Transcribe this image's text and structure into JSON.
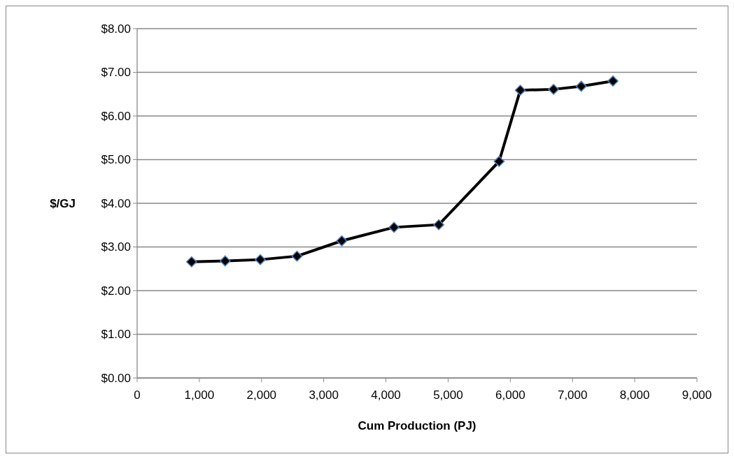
{
  "chart_data": {
    "type": "line",
    "xlabel": "Cum Production (PJ)",
    "ylabel": "$/GJ",
    "x": [
      875,
      1415,
      1980,
      2570,
      3290,
      4130,
      4850,
      5820,
      6160,
      6695,
      7140,
      7650
    ],
    "series": [
      {
        "color": "#000000",
        "values": [
          2.66,
          2.68,
          2.71,
          2.79,
          3.14,
          3.45,
          3.51,
          4.96,
          6.59,
          6.61,
          6.68,
          6.8
        ]
      }
    ],
    "xlim": [
      0,
      9000
    ],
    "xticks": [
      {
        "value": 0,
        "label": "0"
      },
      {
        "value": 1000,
        "label": "1,000"
      },
      {
        "value": 2000,
        "label": "2,000"
      },
      {
        "value": 3000,
        "label": "3,000"
      },
      {
        "value": 4000,
        "label": "4,000"
      },
      {
        "value": 5000,
        "label": "5,000"
      },
      {
        "value": 6000,
        "label": "6,000"
      },
      {
        "value": 7000,
        "label": "7,000"
      },
      {
        "value": 8000,
        "label": "8,000"
      },
      {
        "value": 9000,
        "label": "9,000"
      }
    ],
    "ylim": [
      0,
      8
    ],
    "yticks": [
      {
        "value": 0,
        "label": "$0.00"
      },
      {
        "value": 1,
        "label": "$1.00"
      },
      {
        "value": 2,
        "label": "$2.00"
      },
      {
        "value": 3,
        "label": "$3.00"
      },
      {
        "value": 4,
        "label": "$4.00"
      },
      {
        "value": 5,
        "label": "$5.00"
      },
      {
        "value": 6,
        "label": "$6.00"
      },
      {
        "value": 7,
        "label": "$7.00"
      },
      {
        "value": 8,
        "label": "$8.00"
      }
    ],
    "grid": "y",
    "marker": "diamond",
    "line_style": "solid"
  }
}
